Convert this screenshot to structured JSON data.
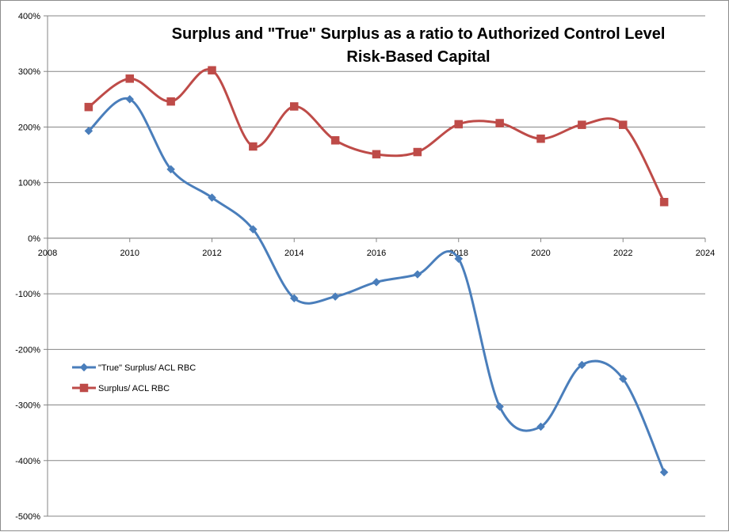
{
  "chart_data": {
    "type": "line",
    "title_lines": [
      "Surplus and \"True\" Surplus as a ratio to Authorized Control Level",
      "Risk-Based Capital"
    ],
    "xlabel": "",
    "ylabel": "",
    "xlim": [
      2008,
      2024
    ],
    "x_ticks": [
      "2008",
      "2010",
      "2012",
      "2014",
      "2016",
      "2018",
      "2020",
      "2022",
      "2024"
    ],
    "ylim": [
      -500,
      400
    ],
    "y_ticks": [
      "400%",
      "300%",
      "200%",
      "100%",
      "0%",
      "-100%",
      "-200%",
      "-300%",
      "-400%",
      "-500%"
    ],
    "grid": "horizontal",
    "legend_position": "left",
    "series": [
      {
        "name": "\"True\" Surplus/ ACL RBC",
        "color": "#4a7ebb",
        "marker": "diamond",
        "x": [
          2009,
          2010,
          2011,
          2012,
          2013,
          2014,
          2015,
          2016,
          2017,
          2018,
          2019,
          2020,
          2021,
          2022,
          2023
        ],
        "values": [
          193,
          250,
          124,
          73,
          16,
          -108,
          -105,
          -79,
          -65,
          -37,
          -303,
          -339,
          -228,
          -253,
          -421
        ]
      },
      {
        "name": "Surplus/ ACL RBC",
        "color": "#be4b48",
        "marker": "square",
        "x": [
          2009,
          2010,
          2011,
          2012,
          2013,
          2014,
          2015,
          2016,
          2017,
          2018,
          2019,
          2020,
          2021,
          2022,
          2023
        ],
        "values": [
          236,
          287,
          246,
          302,
          165,
          237,
          176,
          151,
          155,
          205,
          207,
          179,
          204,
          204,
          65
        ]
      }
    ]
  }
}
